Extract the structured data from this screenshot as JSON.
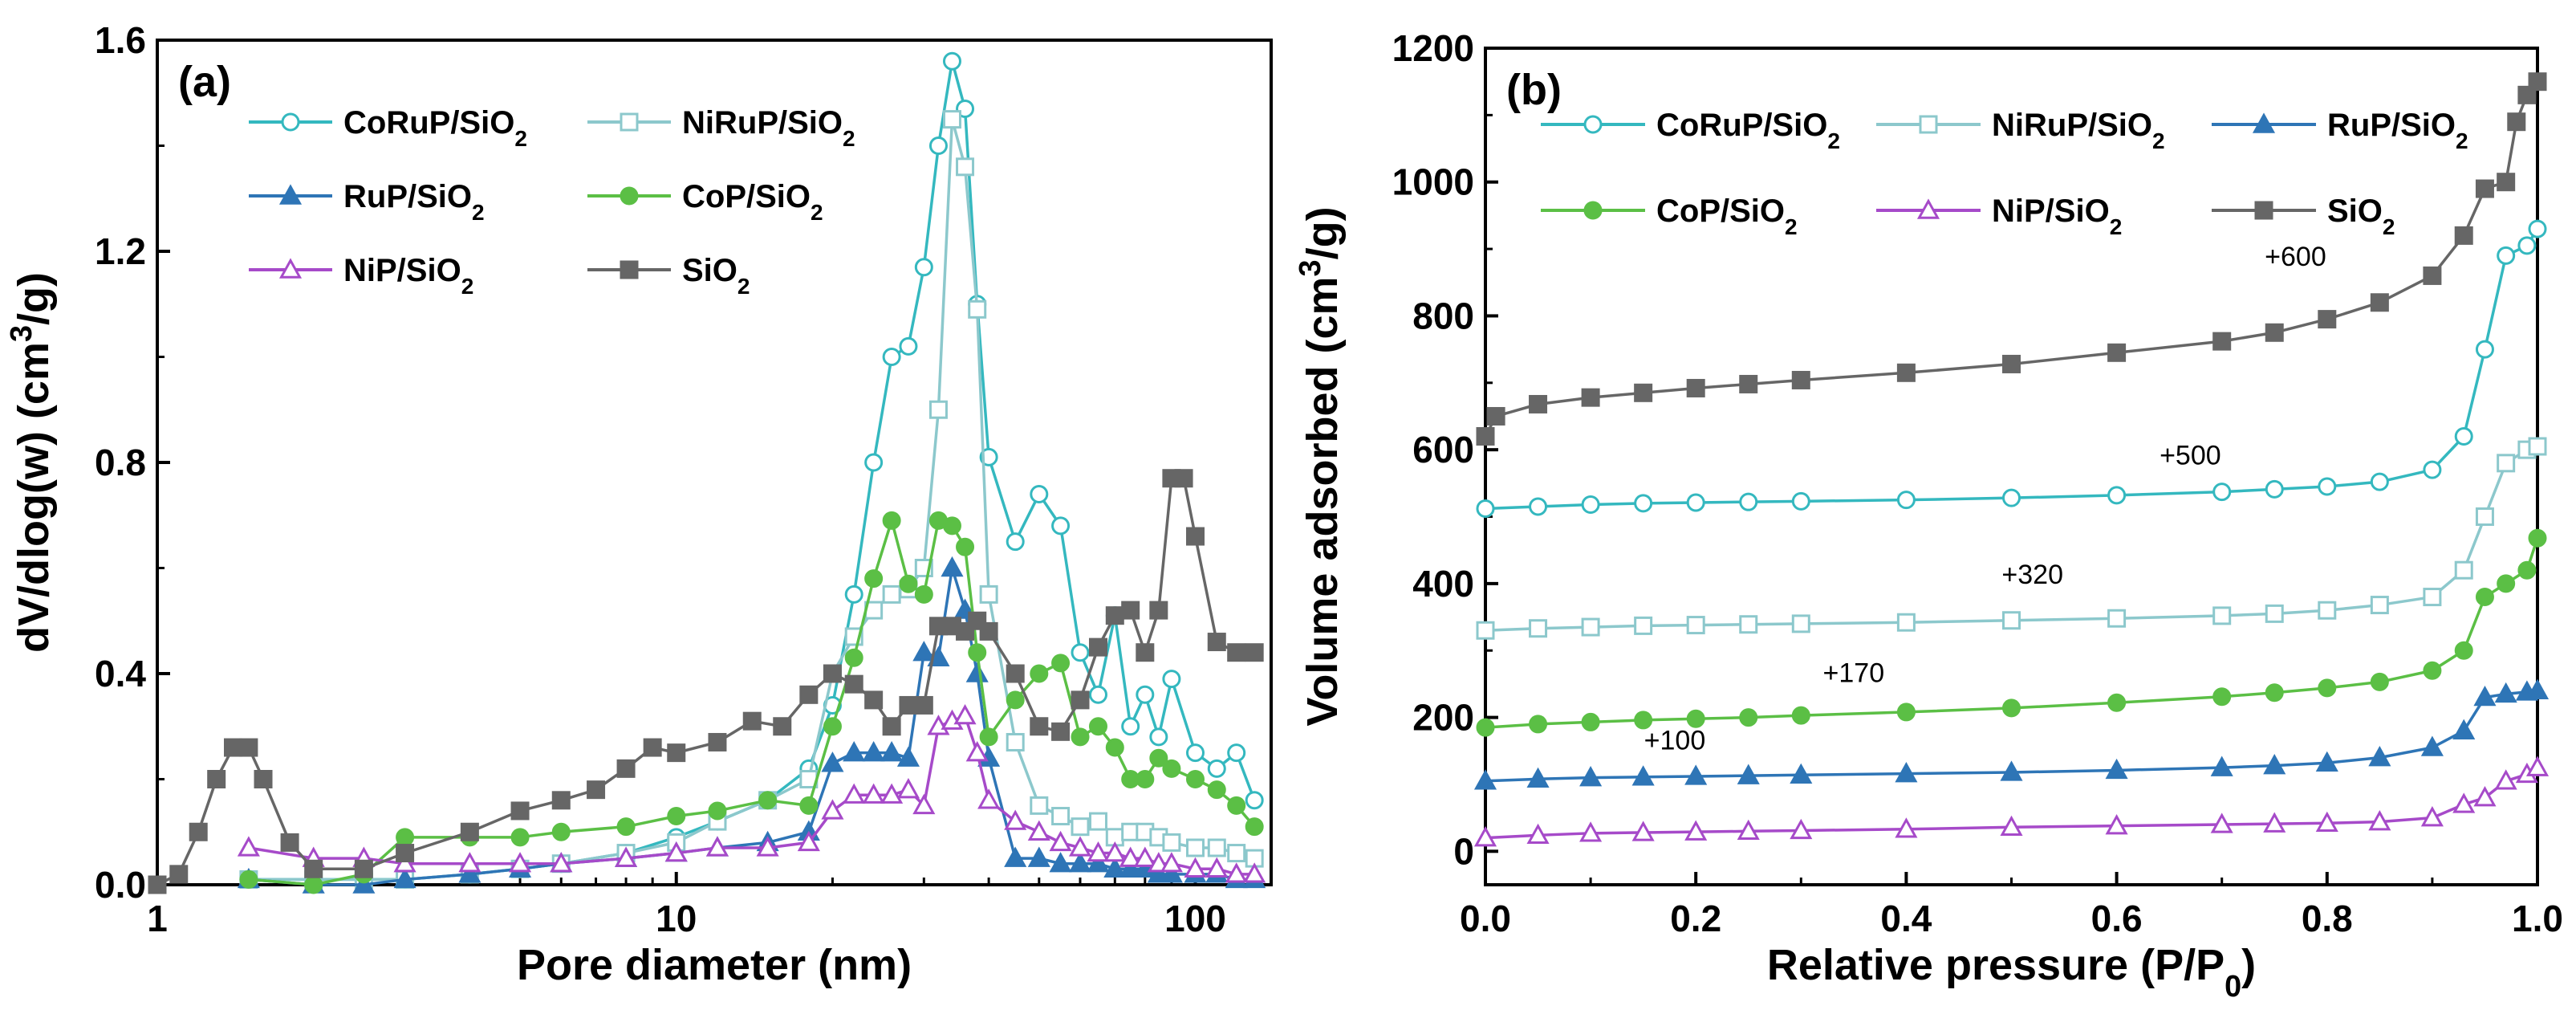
{
  "chart_data": [
    {
      "type": "line",
      "panel_label": "(a)",
      "xlabel": "Pore diameter (nm)",
      "ylabel": "dV/dlog(w) (cm3/g)",
      "xscale": "log",
      "xlim": [
        1,
        140
      ],
      "ylim": [
        0,
        1.6
      ],
      "xticks": [
        1,
        10,
        100
      ],
      "xtick_labels": [
        "1",
        "10",
        "100"
      ],
      "yticks": [
        0,
        0.4,
        0.8,
        1.2,
        1.6
      ],
      "ytick_labels": [
        "0.0",
        "0.4",
        "0.8",
        "1.2",
        "1.6"
      ],
      "legend_columns": 2,
      "series": [
        {
          "name": "CoRuP/SiO2",
          "color": "#34B8BF",
          "marker": "circle-open",
          "x": [
            1.5,
            2,
            2.5,
            3,
            4,
            5,
            6,
            8,
            10,
            12,
            15,
            18,
            20,
            22,
            24,
            26,
            28,
            30,
            32,
            34,
            36,
            38,
            40,
            45,
            50,
            55,
            60,
            65,
            70,
            75,
            80,
            85,
            90,
            100,
            110,
            120,
            130
          ],
          "y": [
            0.01,
            0.01,
            0.01,
            0.01,
            0.02,
            0.03,
            0.04,
            0.06,
            0.09,
            0.12,
            0.16,
            0.22,
            0.34,
            0.55,
            0.8,
            1.0,
            1.02,
            1.17,
            1.4,
            1.56,
            1.47,
            1.1,
            0.81,
            0.65,
            0.74,
            0.68,
            0.44,
            0.36,
            0.51,
            0.3,
            0.36,
            0.28,
            0.39,
            0.25,
            0.22,
            0.25,
            0.16
          ]
        },
        {
          "name": "NiRuP/SiO2",
          "color": "#8CC8CC",
          "marker": "square-open",
          "x": [
            1.5,
            2,
            2.5,
            3,
            4,
            5,
            6,
            8,
            10,
            12,
            15,
            18,
            20,
            22,
            24,
            26,
            28,
            30,
            32,
            34,
            36,
            38,
            40,
            45,
            50,
            55,
            60,
            65,
            70,
            75,
            80,
            85,
            90,
            100,
            110,
            120,
            130
          ],
          "y": [
            0.01,
            0.01,
            0.01,
            0.01,
            0.02,
            0.03,
            0.04,
            0.06,
            0.08,
            0.12,
            0.16,
            0.2,
            0.4,
            0.47,
            0.52,
            0.55,
            0.56,
            0.6,
            0.9,
            1.45,
            1.36,
            1.09,
            0.55,
            0.27,
            0.15,
            0.13,
            0.11,
            0.12,
            0.09,
            0.1,
            0.1,
            0.09,
            0.08,
            0.07,
            0.07,
            0.06,
            0.05
          ]
        },
        {
          "name": "RuP/SiO2",
          "color": "#2E75B6",
          "marker": "triangle-filled",
          "x": [
            1.5,
            2,
            2.5,
            3,
            4,
            5,
            6,
            8,
            10,
            12,
            15,
            18,
            20,
            22,
            24,
            26,
            28,
            30,
            32,
            34,
            36,
            38,
            40,
            45,
            50,
            55,
            60,
            65,
            70,
            75,
            80,
            85,
            90,
            100,
            110,
            120,
            130
          ],
          "y": [
            0.01,
            0.0,
            0.0,
            0.01,
            0.02,
            0.03,
            0.04,
            0.05,
            0.06,
            0.07,
            0.08,
            0.1,
            0.23,
            0.25,
            0.25,
            0.25,
            0.24,
            0.44,
            0.43,
            0.6,
            0.52,
            0.4,
            0.24,
            0.05,
            0.05,
            0.04,
            0.04,
            0.04,
            0.03,
            0.03,
            0.03,
            0.02,
            0.02,
            0.02,
            0.02,
            0.01,
            0.01
          ]
        },
        {
          "name": "CoP/SiO2",
          "color": "#5BBF45",
          "marker": "circle-filled",
          "x": [
            1.5,
            2,
            2.5,
            3,
            4,
            5,
            6,
            8,
            10,
            12,
            15,
            18,
            20,
            22,
            24,
            26,
            28,
            30,
            32,
            34,
            36,
            38,
            40,
            45,
            50,
            55,
            60,
            65,
            70,
            75,
            80,
            85,
            90,
            100,
            110,
            120,
            130
          ],
          "y": [
            0.01,
            0.0,
            0.02,
            0.09,
            0.09,
            0.09,
            0.1,
            0.11,
            0.13,
            0.14,
            0.16,
            0.15,
            0.3,
            0.43,
            0.58,
            0.69,
            0.57,
            0.55,
            0.69,
            0.68,
            0.64,
            0.44,
            0.28,
            0.35,
            0.4,
            0.42,
            0.28,
            0.3,
            0.26,
            0.2,
            0.2,
            0.24,
            0.22,
            0.2,
            0.18,
            0.15,
            0.11
          ]
        },
        {
          "name": "NiP/SiO2",
          "color": "#A64AC9",
          "marker": "triangle-open",
          "x": [
            1.5,
            2,
            2.5,
            3,
            4,
            5,
            6,
            8,
            10,
            12,
            15,
            18,
            20,
            22,
            24,
            26,
            28,
            30,
            32,
            34,
            36,
            38,
            40,
            45,
            50,
            55,
            60,
            65,
            70,
            75,
            80,
            85,
            90,
            100,
            110,
            120,
            130
          ],
          "y": [
            0.07,
            0.05,
            0.05,
            0.04,
            0.04,
            0.04,
            0.04,
            0.05,
            0.06,
            0.07,
            0.07,
            0.08,
            0.14,
            0.17,
            0.17,
            0.17,
            0.18,
            0.15,
            0.3,
            0.31,
            0.32,
            0.25,
            0.16,
            0.12,
            0.1,
            0.08,
            0.07,
            0.06,
            0.06,
            0.05,
            0.05,
            0.04,
            0.04,
            0.03,
            0.03,
            0.02,
            0.02
          ]
        },
        {
          "name": "SiO2",
          "color": "#666666",
          "marker": "square-filled",
          "x": [
            1.0,
            1.1,
            1.2,
            1.3,
            1.4,
            1.5,
            1.6,
            1.8,
            2,
            2.5,
            3,
            4,
            5,
            6,
            7,
            8,
            9,
            10,
            12,
            14,
            16,
            18,
            20,
            22,
            24,
            26,
            28,
            30,
            32,
            34,
            36,
            38,
            40,
            45,
            50,
            55,
            60,
            65,
            70,
            75,
            80,
            85,
            90,
            95,
            100,
            110,
            120,
            130
          ],
          "y": [
            0.0,
            0.02,
            0.1,
            0.2,
            0.26,
            0.26,
            0.2,
            0.08,
            0.03,
            0.03,
            0.06,
            0.1,
            0.14,
            0.16,
            0.18,
            0.22,
            0.26,
            0.25,
            0.27,
            0.31,
            0.3,
            0.36,
            0.4,
            0.38,
            0.35,
            0.3,
            0.34,
            0.34,
            0.49,
            0.49,
            0.48,
            0.5,
            0.48,
            0.4,
            0.3,
            0.29,
            0.35,
            0.45,
            0.51,
            0.52,
            0.44,
            0.52,
            0.77,
            0.77,
            0.66,
            0.46,
            0.44,
            0.44
          ]
        }
      ]
    },
    {
      "type": "line",
      "panel_label": "(b)",
      "xlabel": "Relative pressure (P/P0)",
      "ylabel": "Volume adsorbed (cm3/g)",
      "xlim": [
        0,
        1.0
      ],
      "ylim": [
        -50,
        1200
      ],
      "xticks": [
        0,
        0.2,
        0.4,
        0.6,
        0.8,
        1.0
      ],
      "xtick_labels": [
        "0.0",
        "0.2",
        "0.4",
        "0.6",
        "0.8",
        "1.0"
      ],
      "yticks": [
        0,
        200,
        400,
        600,
        800,
        1000,
        1200
      ],
      "ytick_labels": [
        "0",
        "200",
        "400",
        "600",
        "800",
        "1000",
        "1200"
      ],
      "legend_columns": 3,
      "annotations": [
        {
          "text": "+600",
          "x": 0.77,
          "y": 875
        },
        {
          "text": "+500",
          "x": 0.67,
          "y": 578
        },
        {
          "text": "+320",
          "x": 0.52,
          "y": 400
        },
        {
          "text": "+170",
          "x": 0.35,
          "y": 253
        },
        {
          "text": "+100",
          "x": 0.18,
          "y": 152
        }
      ],
      "series": [
        {
          "name": "CoRuP/SiO2",
          "color": "#34B8BF",
          "marker": "circle-open",
          "x": [
            0.0,
            0.05,
            0.1,
            0.15,
            0.2,
            0.25,
            0.3,
            0.4,
            0.5,
            0.6,
            0.7,
            0.75,
            0.8,
            0.85,
            0.9,
            0.93,
            0.95,
            0.97,
            0.99,
            1.0
          ],
          "y": [
            512,
            515,
            518,
            520,
            521,
            522,
            523,
            525,
            528,
            532,
            537,
            541,
            545,
            552,
            570,
            620,
            750,
            890,
            905,
            930
          ]
        },
        {
          "name": "NiRuP/SiO2",
          "color": "#8CC8CC",
          "marker": "square-open",
          "x": [
            0.0,
            0.05,
            0.1,
            0.15,
            0.2,
            0.25,
            0.3,
            0.4,
            0.5,
            0.6,
            0.7,
            0.75,
            0.8,
            0.85,
            0.9,
            0.93,
            0.95,
            0.97,
            0.99,
            1.0
          ],
          "y": [
            330,
            333,
            335,
            337,
            338,
            339,
            340,
            342,
            345,
            348,
            352,
            355,
            360,
            368,
            380,
            420,
            500,
            580,
            600,
            605
          ]
        },
        {
          "name": "RuP/SiO2",
          "color": "#2E75B6",
          "marker": "triangle-filled",
          "x": [
            0.0,
            0.05,
            0.1,
            0.15,
            0.2,
            0.25,
            0.3,
            0.4,
            0.5,
            0.6,
            0.7,
            0.75,
            0.8,
            0.85,
            0.9,
            0.93,
            0.95,
            0.97,
            0.99,
            1.0
          ],
          "y": [
            105,
            108,
            110,
            111,
            112,
            113,
            114,
            116,
            118,
            121,
            125,
            128,
            132,
            140,
            155,
            180,
            230,
            235,
            238,
            240
          ]
        },
        {
          "name": "CoP/SiO2",
          "color": "#5BBF45",
          "marker": "circle-filled",
          "x": [
            0.0,
            0.05,
            0.1,
            0.15,
            0.2,
            0.25,
            0.3,
            0.4,
            0.5,
            0.6,
            0.7,
            0.75,
            0.8,
            0.85,
            0.9,
            0.93,
            0.95,
            0.97,
            0.99,
            1.0
          ],
          "y": [
            185,
            190,
            193,
            196,
            198,
            200,
            203,
            208,
            214,
            222,
            231,
            237,
            244,
            253,
            270,
            300,
            380,
            400,
            420,
            468
          ]
        },
        {
          "name": "NiP/SiO2",
          "color": "#A64AC9",
          "marker": "triangle-open",
          "x": [
            0.0,
            0.05,
            0.1,
            0.15,
            0.2,
            0.25,
            0.3,
            0.4,
            0.5,
            0.6,
            0.7,
            0.75,
            0.8,
            0.85,
            0.9,
            0.93,
            0.95,
            0.97,
            0.99,
            1.0
          ],
          "y": [
            20,
            24,
            27,
            28,
            29,
            30,
            31,
            33,
            36,
            38,
            40,
            41,
            42,
            44,
            50,
            70,
            80,
            105,
            115,
            125
          ]
        },
        {
          "name": "SiO2",
          "color": "#666666",
          "marker": "square-filled",
          "x": [
            0.0,
            0.01,
            0.05,
            0.1,
            0.15,
            0.2,
            0.25,
            0.3,
            0.4,
            0.5,
            0.6,
            0.7,
            0.75,
            0.8,
            0.85,
            0.9,
            0.93,
            0.95,
            0.97,
            0.98,
            0.99,
            1.0
          ],
          "y": [
            620,
            650,
            668,
            678,
            685,
            692,
            698,
            704,
            715,
            728,
            745,
            762,
            775,
            795,
            820,
            860,
            920,
            990,
            1000,
            1090,
            1130,
            1150
          ]
        }
      ]
    }
  ]
}
